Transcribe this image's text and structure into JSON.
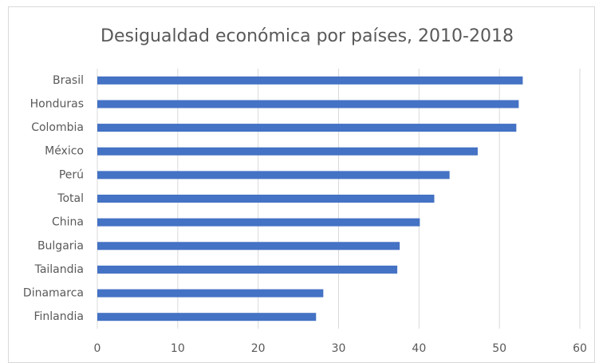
{
  "chart_data": {
    "type": "hbar",
    "title": "Desigualdad económica por países, 2010-2018",
    "categories": [
      "Brasil",
      "Honduras",
      "Colombia",
      "México",
      "Perú",
      "Total",
      "China",
      "Bulgaria",
      "Tailandia",
      "Dinamarca",
      "Finlandia"
    ],
    "values": [
      52.9,
      52.4,
      52.1,
      47.3,
      43.8,
      41.9,
      40.1,
      37.6,
      37.3,
      28.1,
      27.2
    ],
    "color": "#4472c4",
    "xlim": [
      0,
      60
    ],
    "xticks": [
      0,
      10,
      20,
      30,
      40,
      50,
      60
    ],
    "grid": true
  }
}
